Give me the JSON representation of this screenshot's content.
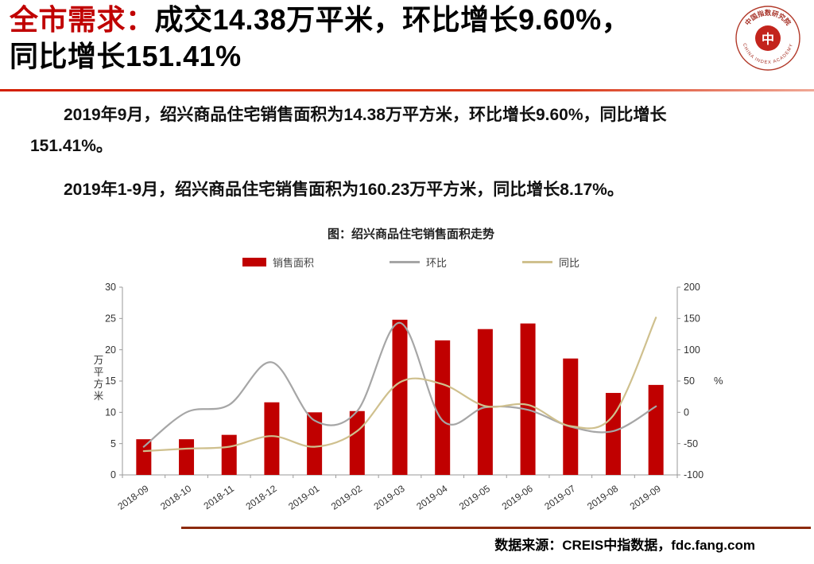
{
  "colors": {
    "accent": "#c00000",
    "divider_start": "#d31f00",
    "divider_end": "#f0a896",
    "bar": "#c00000",
    "line_mom": "#a6a6a6",
    "line_yoy": "#cfc08e",
    "footer_line": "#8c2a0e",
    "axis": "#9a9a9a",
    "tick_text": "#333333"
  },
  "header": {
    "title_prefix": "全市需求：",
    "title_line1": "成交14.38万平米，环比增长9.60%，",
    "title_line2": "同比增长151.41%",
    "logo": {
      "top_text": "中国指数研究院",
      "bottom_text": "CHINA INDEX ACADEMY",
      "center": "中"
    }
  },
  "paragraphs": [
    {
      "lines": [
        "2019年9月，绍兴商品住宅销售面积为14.38万平方米，环比增长9.60%，同比增长",
        "151.41%。"
      ]
    },
    {
      "lines": [
        "2019年1-9月，绍兴商品住宅销售面积为160.23万平方米，同比增长8.17%。"
      ]
    }
  ],
  "chart_data": {
    "type": "bar+line",
    "title": "图：绍兴商品住宅销售面积走势",
    "categories": [
      "2018-09",
      "2018-10",
      "2018-11",
      "2018-12",
      "2019-01",
      "2019-02",
      "2019-03",
      "2019-04",
      "2019-05",
      "2019-06",
      "2019-07",
      "2019-08",
      "2019-09"
    ],
    "series": [
      {
        "name": "销售面积",
        "type": "bar",
        "axis": "left",
        "color": "#c00000",
        "values": [
          5.7,
          5.7,
          6.4,
          11.6,
          10.0,
          10.2,
          24.8,
          21.5,
          23.3,
          24.2,
          18.6,
          13.1,
          14.38
        ]
      },
      {
        "name": "环比",
        "type": "line",
        "axis": "right",
        "color": "#a6a6a6",
        "values": [
          -55,
          0,
          12,
          80,
          -13,
          2,
          143,
          -13,
          8,
          4,
          -23,
          -30,
          9.6
        ]
      },
      {
        "name": "同比",
        "type": "line",
        "axis": "right",
        "color": "#cfc08e",
        "values": [
          -62,
          -58,
          -55,
          -38,
          -55,
          -30,
          48,
          45,
          10,
          12,
          -22,
          -5,
          151.41
        ]
      }
    ],
    "left_axis": {
      "label": "万平方米",
      "min": 0,
      "max": 30,
      "ticks": [
        0,
        5,
        10,
        15,
        20,
        25,
        30
      ]
    },
    "right_axis": {
      "label": "%",
      "min": -100,
      "max": 200,
      "ticks": [
        -100,
        -50,
        0,
        50,
        100,
        150,
        200
      ]
    },
    "legend_position": "top",
    "grid": false
  },
  "footer": {
    "source": "数据来源：CREIS中指数据，fdc.fang.com"
  }
}
